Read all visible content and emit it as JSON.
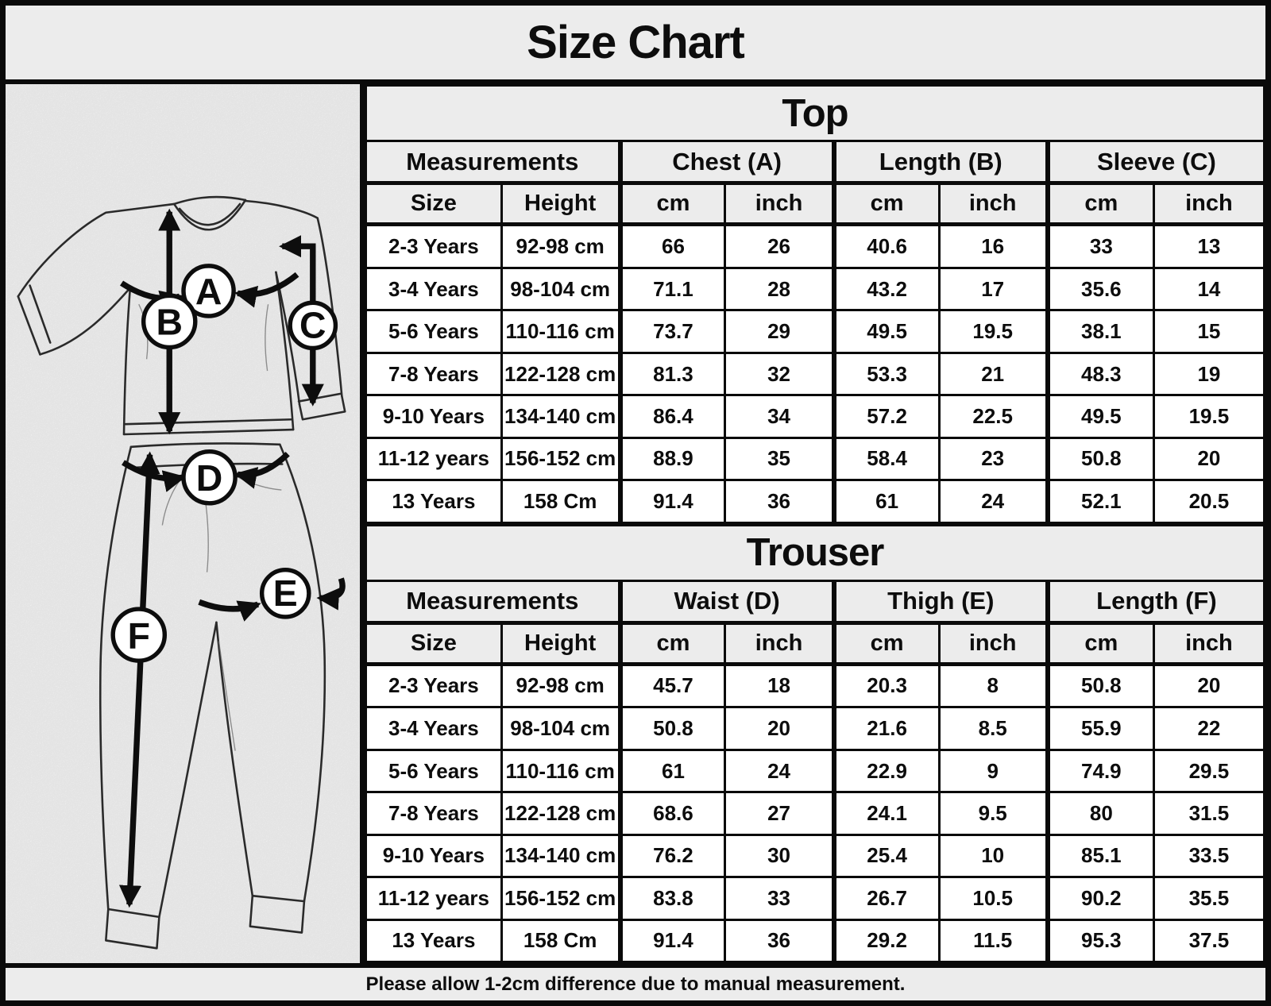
{
  "title": "Size Chart",
  "footer_note": "Please allow 1-2cm difference due to manual measurement.",
  "colors": {
    "header_bg": "#ececec",
    "row_bg": "#ffffff",
    "border": "#0a0a0a",
    "text": "#0d0d0d"
  },
  "diagram": {
    "markers": [
      {
        "label": "A"
      },
      {
        "label": "B"
      },
      {
        "label": "C"
      },
      {
        "label": "D"
      },
      {
        "label": "E"
      },
      {
        "label": "F"
      }
    ]
  },
  "tables": [
    {
      "title": "Top",
      "group_headers": [
        {
          "label": "Measurements",
          "span": 2
        },
        {
          "label": "Chest (A)",
          "span": 2
        },
        {
          "label": "Length (B)",
          "span": 2
        },
        {
          "label": "Sleeve (C)",
          "span": 2
        }
      ],
      "sub_headers": [
        "Size",
        "Height",
        "cm",
        "inch",
        "cm",
        "inch",
        "cm",
        "inch"
      ],
      "rows": [
        [
          "2-3 Years",
          "92-98 cm",
          "66",
          "26",
          "40.6",
          "16",
          "33",
          "13"
        ],
        [
          "3-4 Years",
          "98-104 cm",
          "71.1",
          "28",
          "43.2",
          "17",
          "35.6",
          "14"
        ],
        [
          "5-6 Years",
          "110-116 cm",
          "73.7",
          "29",
          "49.5",
          "19.5",
          "38.1",
          "15"
        ],
        [
          "7-8 Years",
          "122-128 cm",
          "81.3",
          "32",
          "53.3",
          "21",
          "48.3",
          "19"
        ],
        [
          "9-10 Years",
          "134-140 cm",
          "86.4",
          "34",
          "57.2",
          "22.5",
          "49.5",
          "19.5"
        ],
        [
          "11-12 years",
          "156-152 cm",
          "88.9",
          "35",
          "58.4",
          "23",
          "50.8",
          "20"
        ],
        [
          "13 Years",
          "158 Cm",
          "91.4",
          "36",
          "61",
          "24",
          "52.1",
          "20.5"
        ]
      ]
    },
    {
      "title": "Trouser",
      "group_headers": [
        {
          "label": "Measurements",
          "span": 2
        },
        {
          "label": "Waist (D)",
          "span": 2
        },
        {
          "label": "Thigh (E)",
          "span": 2
        },
        {
          "label": "Length (F)",
          "span": 2
        }
      ],
      "sub_headers": [
        "Size",
        "Height",
        "cm",
        "inch",
        "cm",
        "inch",
        "cm",
        "inch"
      ],
      "rows": [
        [
          "2-3 Years",
          "92-98 cm",
          "45.7",
          "18",
          "20.3",
          "8",
          "50.8",
          "20"
        ],
        [
          "3-4 Years",
          "98-104 cm",
          "50.8",
          "20",
          "21.6",
          "8.5",
          "55.9",
          "22"
        ],
        [
          "5-6 Years",
          "110-116 cm",
          "61",
          "24",
          "22.9",
          "9",
          "74.9",
          "29.5"
        ],
        [
          "7-8 Years",
          "122-128 cm",
          "68.6",
          "27",
          "24.1",
          "9.5",
          "80",
          "31.5"
        ],
        [
          "9-10 Years",
          "134-140 cm",
          "76.2",
          "30",
          "25.4",
          "10",
          "85.1",
          "33.5"
        ],
        [
          "11-12 years",
          "156-152 cm",
          "83.8",
          "33",
          "26.7",
          "10.5",
          "90.2",
          "35.5"
        ],
        [
          "13 Years",
          "158 Cm",
          "91.4",
          "36",
          "29.2",
          "11.5",
          "95.3",
          "37.5"
        ]
      ]
    }
  ]
}
